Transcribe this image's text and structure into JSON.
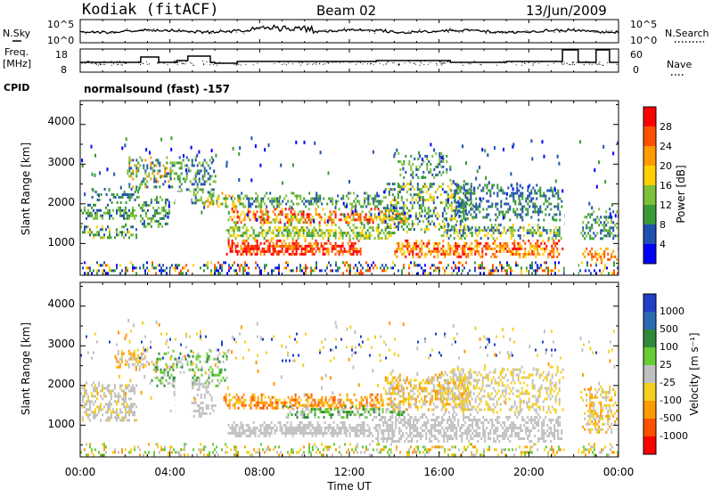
{
  "header": {
    "station": "Kodiak (fitACF)",
    "beam": "Beam 02",
    "date": "13/Jun/2009"
  },
  "left_labels": {
    "nsky": "N.Sky",
    "freq_line1": "Freq.",
    "freq_line2": "[MHz]",
    "cpid": "CPID",
    "cpid_value": "normalsound (fast) -157"
  },
  "right_labels": {
    "nsearch": "N.Search",
    "nave": "Nave"
  },
  "colors": {
    "power": [
      "#0000ff",
      "#2050b0",
      "#3a9a3a",
      "#7ec03a",
      "#ffd000",
      "#ff9a00",
      "#ff5000",
      "#ff0000"
    ],
    "velocity": [
      "#1f3fc8",
      "#2a6ab0",
      "#2e8a3a",
      "#66cc33",
      "#c0c0c0",
      "#f2d020",
      "#ff9900",
      "#ff5000",
      "#ff0000"
    ]
  },
  "chart_data": [
    {
      "type": "line",
      "name": "noise-sky-search",
      "y_ticks": [
        "10^5",
        "10^0"
      ],
      "y2_ticks": [
        "10^5",
        "10^0"
      ],
      "x_ticks": [
        "00:00",
        "04:00",
        "08:00",
        "12:00",
        "16:00",
        "20:00",
        "00:00"
      ]
    },
    {
      "type": "line",
      "name": "frequency-nave",
      "y_ticks": [
        "18",
        "8"
      ],
      "y2_ticks": [
        "60",
        "0"
      ],
      "x_ticks": [
        "00:00",
        "04:00",
        "08:00",
        "12:00",
        "16:00",
        "20:00",
        "00:00"
      ]
    },
    {
      "type": "heatmap",
      "name": "power",
      "ylabel": "Slant Range [km]",
      "y_ticks": [
        "4000",
        "3000",
        "2000",
        "1000"
      ],
      "x_ticks": [
        "00:00",
        "04:00",
        "08:00",
        "12:00",
        "16:00",
        "20:00",
        "00:00"
      ],
      "xlim_hours": [
        0,
        24
      ],
      "ylim_km": [
        200,
        4600
      ],
      "colorbar": {
        "label": "Power [dB]",
        "ticks": [
          "28",
          "24",
          "20",
          "16",
          "12",
          "8",
          "4"
        ]
      }
    },
    {
      "type": "heatmap",
      "name": "velocity",
      "ylabel": "Slant Range [km]",
      "xlabel": "Time UT",
      "y_ticks": [
        "4000",
        "3000",
        "2000",
        "1000"
      ],
      "x_ticks": [
        "00:00",
        "04:00",
        "08:00",
        "12:00",
        "16:00",
        "20:00",
        "00:00"
      ],
      "xlim_hours": [
        0,
        24
      ],
      "ylim_km": [
        200,
        4600
      ],
      "colorbar": {
        "label": "Velocity [m s⁻¹]",
        "ticks": [
          "1000",
          "500",
          "100",
          "25",
          "-25",
          "-100",
          "-500",
          "-1000"
        ]
      }
    }
  ]
}
